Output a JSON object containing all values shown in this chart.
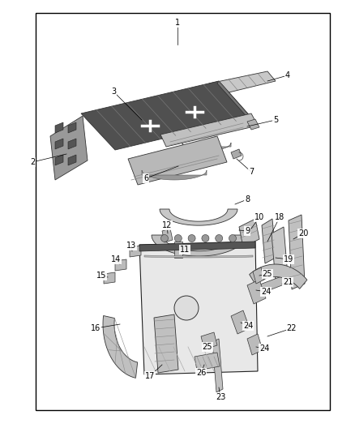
{
  "bg_color": "#ffffff",
  "border_color": "#000000",
  "fig_w": 4.38,
  "fig_h": 5.33,
  "dpi": 100,
  "border": [
    0.1,
    0.03,
    0.93,
    0.95
  ],
  "part_fill": "#d0d0d0",
  "part_dark": "#888888",
  "part_edge": "#333333",
  "label_fs": 7.0
}
